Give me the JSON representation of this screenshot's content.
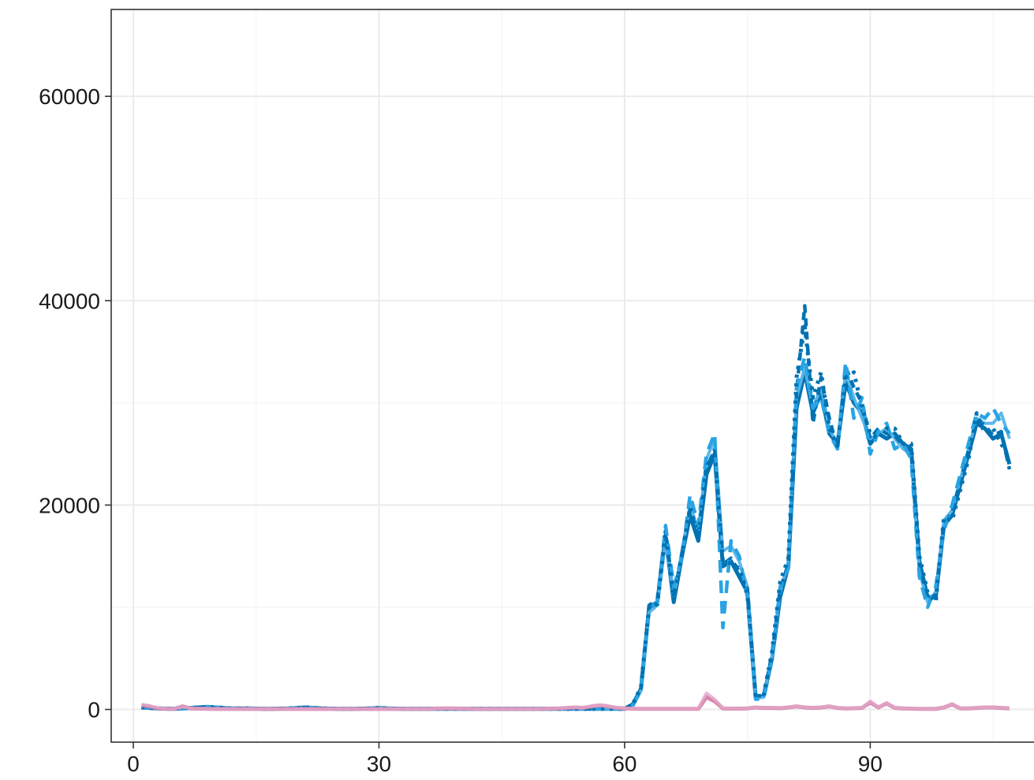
{
  "chart_data": {
    "type": "line",
    "title": "",
    "xlabel": "",
    "ylabel": "",
    "xlim": [
      -2.7,
      110
    ],
    "ylim": [
      -3200,
      68500
    ],
    "x_ticks": [
      0,
      30,
      60,
      90
    ],
    "x_tick_labels": [
      "0",
      "30",
      "60",
      "90"
    ],
    "y_ticks": [
      0,
      20000,
      40000,
      60000
    ],
    "y_tick_labels": [
      "0",
      "20000",
      "40000",
      "60000"
    ],
    "grid": true,
    "legend": "none",
    "x": [
      1,
      2,
      3,
      4,
      5,
      6,
      7,
      8,
      9,
      10,
      11,
      12,
      13,
      14,
      15,
      16,
      17,
      18,
      19,
      20,
      21,
      22,
      23,
      24,
      25,
      26,
      27,
      28,
      29,
      30,
      31,
      32,
      33,
      34,
      35,
      36,
      37,
      38,
      39,
      40,
      41,
      42,
      43,
      44,
      45,
      46,
      47,
      48,
      49,
      50,
      51,
      52,
      53,
      54,
      55,
      56,
      57,
      58,
      59,
      60,
      61,
      62,
      63,
      64,
      65,
      66,
      67,
      68,
      69,
      70,
      71,
      72,
      73,
      74,
      75,
      76,
      77,
      78,
      79,
      80,
      81,
      82,
      83,
      84,
      85,
      86,
      87,
      88,
      89,
      90,
      91,
      92,
      93,
      94,
      95,
      96,
      97,
      98,
      99,
      100,
      101,
      102,
      103,
      104,
      105,
      106,
      107
    ],
    "series": [
      {
        "color": "#0072b2",
        "dash": "solid",
        "width": 5,
        "opacity": 1,
        "values": [
          200,
          150,
          100,
          80,
          60,
          100,
          150,
          200,
          250,
          200,
          150,
          100,
          100,
          100,
          80,
          60,
          60,
          80,
          100,
          150,
          200,
          150,
          100,
          80,
          60,
          60,
          60,
          80,
          100,
          150,
          100,
          80,
          60,
          60,
          60,
          60,
          60,
          60,
          60,
          60,
          60,
          60,
          60,
          60,
          60,
          60,
          60,
          60,
          60,
          60,
          60,
          60,
          60,
          60,
          60,
          60,
          60,
          60,
          60,
          60,
          500,
          2000,
          10000,
          10500,
          17000,
          10500,
          15000,
          19000,
          16500,
          23000,
          25000,
          14000,
          14500,
          13000,
          11500,
          1200,
          1300,
          5000,
          11000,
          14000,
          29500,
          33000,
          29000,
          31000,
          27000,
          26000,
          32000,
          30000,
          29000,
          26000,
          27000,
          26500,
          27000,
          26000,
          25500,
          14500,
          11000,
          11000,
          18000,
          19000,
          22000,
          25000,
          28000,
          27500,
          26500,
          27000,
          24000
        ]
      },
      {
        "color": "#56b4e9",
        "dash": "solid",
        "width": 4,
        "opacity": 0.95,
        "values": [
          200,
          150,
          100,
          80,
          60,
          100,
          150,
          200,
          250,
          200,
          150,
          100,
          100,
          100,
          80,
          60,
          60,
          80,
          100,
          150,
          200,
          150,
          100,
          80,
          60,
          60,
          60,
          80,
          100,
          150,
          100,
          80,
          60,
          60,
          60,
          60,
          60,
          60,
          60,
          60,
          60,
          60,
          60,
          60,
          60,
          60,
          60,
          60,
          60,
          60,
          60,
          60,
          60,
          60,
          60,
          60,
          60,
          60,
          60,
          60,
          400,
          1800,
          9500,
          10200,
          16500,
          11000,
          15500,
          20000,
          17500,
          24500,
          26500,
          15500,
          16000,
          14500,
          12000,
          1100,
          1200,
          5200,
          11500,
          14500,
          30500,
          33500,
          29500,
          31500,
          27500,
          26000,
          33000,
          30500,
          28500,
          26500,
          27000,
          27500,
          26500,
          25500,
          25000,
          13500,
          10500,
          11500,
          18500,
          19500,
          22500,
          25500,
          28500,
          28000,
          28000,
          29000,
          26500
        ]
      },
      {
        "color": "#0072b2",
        "dash": "10 7",
        "width": 4.5,
        "opacity": 1,
        "values": [
          200,
          150,
          100,
          80,
          60,
          100,
          150,
          200,
          250,
          200,
          150,
          100,
          100,
          100,
          80,
          60,
          60,
          80,
          100,
          150,
          200,
          150,
          100,
          80,
          60,
          60,
          60,
          80,
          100,
          150,
          100,
          80,
          60,
          60,
          60,
          60,
          60,
          60,
          60,
          60,
          60,
          60,
          60,
          60,
          60,
          60,
          60,
          60,
          60,
          60,
          60,
          60,
          60,
          60,
          60,
          60,
          60,
          60,
          60,
          60,
          450,
          2100,
          10200,
          10800,
          17500,
          11200,
          15200,
          19500,
          17000,
          23500,
          25500,
          14200,
          14800,
          13500,
          11800,
          1300,
          1400,
          5400,
          11800,
          14200,
          31000,
          39500,
          28000,
          32500,
          28500,
          25500,
          33500,
          31500,
          30000,
          26500,
          27500,
          27000,
          26800,
          25800,
          25300,
          14200,
          10800,
          11200,
          18200,
          19300,
          22300,
          25300,
          28300,
          27800,
          26800,
          27200,
          23500
        ]
      },
      {
        "color": "#29a3e3",
        "dash": "16 10",
        "width": 4.5,
        "opacity": 1,
        "values": [
          200,
          150,
          100,
          80,
          60,
          100,
          150,
          200,
          250,
          200,
          150,
          100,
          100,
          100,
          80,
          60,
          60,
          80,
          100,
          150,
          200,
          150,
          100,
          80,
          60,
          60,
          60,
          80,
          100,
          150,
          100,
          80,
          60,
          60,
          60,
          60,
          60,
          60,
          60,
          60,
          60,
          60,
          60,
          60,
          60,
          60,
          60,
          60,
          60,
          60,
          60,
          60,
          60,
          60,
          60,
          60,
          60,
          60,
          60,
          60,
          350,
          1900,
          9800,
          10500,
          18000,
          12000,
          14800,
          21000,
          18000,
          25000,
          27000,
          8000,
          16500,
          15000,
          11000,
          1000,
          1100,
          4800,
          12000,
          13800,
          31500,
          34500,
          29500,
          30500,
          27000,
          25500,
          34000,
          28500,
          30500,
          25000,
          27200,
          28000,
          25500,
          26000,
          24500,
          13000,
          10000,
          12000,
          17500,
          20000,
          23000,
          26000,
          29000,
          28500,
          29500,
          28000,
          27000
        ]
      },
      {
        "color": "#0072b2",
        "dash": "4 7",
        "width": 5,
        "opacity": 1,
        "values": [
          200,
          150,
          100,
          80,
          60,
          100,
          150,
          200,
          250,
          200,
          150,
          100,
          100,
          100,
          80,
          60,
          60,
          80,
          100,
          150,
          200,
          150,
          100,
          80,
          60,
          60,
          60,
          80,
          100,
          150,
          100,
          80,
          60,
          60,
          60,
          60,
          60,
          60,
          60,
          60,
          60,
          60,
          60,
          60,
          60,
          60,
          60,
          60,
          60,
          60,
          60,
          60,
          60,
          60,
          60,
          60,
          60,
          60,
          60,
          60,
          500,
          2200,
          10100,
          10300,
          17200,
          10800,
          15100,
          19800,
          16800,
          23800,
          25200,
          14500,
          14300,
          13800,
          11200,
          1400,
          1500,
          5600,
          12500,
          14800,
          32500,
          37500,
          30500,
          33000,
          27500,
          25800,
          32500,
          33000,
          29500,
          27000,
          26500,
          27500,
          27500,
          26000,
          26000,
          15000,
          11500,
          10500,
          18800,
          18500,
          21500,
          24500,
          29000,
          27000,
          27500,
          26000,
          24500
        ]
      },
      {
        "color": "#cc79a7",
        "dash": "solid",
        "width": 5,
        "opacity": 0.9,
        "values": [
          400,
          300,
          100,
          60,
          50,
          300,
          100,
          80,
          60,
          50,
          50,
          50,
          50,
          50,
          50,
          50,
          50,
          50,
          50,
          50,
          50,
          50,
          50,
          50,
          50,
          50,
          50,
          50,
          50,
          50,
          50,
          50,
          50,
          50,
          50,
          50,
          80,
          100,
          100,
          80,
          60,
          50,
          50,
          50,
          50,
          50,
          50,
          50,
          50,
          60,
          80,
          100,
          150,
          200,
          150,
          300,
          400,
          300,
          150,
          100,
          80,
          60,
          60,
          60,
          60,
          60,
          60,
          60,
          60,
          1200,
          800,
          100,
          80,
          80,
          100,
          200,
          150,
          150,
          120,
          200,
          300,
          200,
          150,
          200,
          300,
          150,
          100,
          120,
          150,
          700,
          200,
          600,
          150,
          100,
          80,
          60,
          50,
          50,
          200,
          500,
          100,
          100,
          150,
          200,
          200,
          150,
          100
        ]
      },
      {
        "color": "#e6a6c8",
        "dash": "solid",
        "width": 4,
        "opacity": 0.8,
        "values": [
          500,
          350,
          150,
          80,
          60,
          250,
          120,
          90,
          70,
          60,
          50,
          50,
          50,
          50,
          50,
          50,
          50,
          50,
          50,
          50,
          50,
          50,
          50,
          50,
          50,
          50,
          50,
          50,
          50,
          50,
          50,
          50,
          50,
          50,
          50,
          50,
          90,
          110,
          110,
          90,
          70,
          50,
          50,
          50,
          50,
          50,
          50,
          50,
          50,
          70,
          90,
          110,
          160,
          220,
          160,
          320,
          420,
          320,
          160,
          110,
          90,
          70,
          70,
          70,
          70,
          70,
          70,
          70,
          70,
          1600,
          1000,
          150,
          90,
          90,
          110,
          220,
          160,
          160,
          130,
          220,
          320,
          220,
          160,
          220,
          320,
          160,
          110,
          130,
          160,
          800,
          220,
          650,
          160,
          110,
          90,
          70,
          50,
          50,
          220,
          550,
          110,
          110,
          160,
          220,
          220,
          160,
          110
        ]
      }
    ]
  }
}
